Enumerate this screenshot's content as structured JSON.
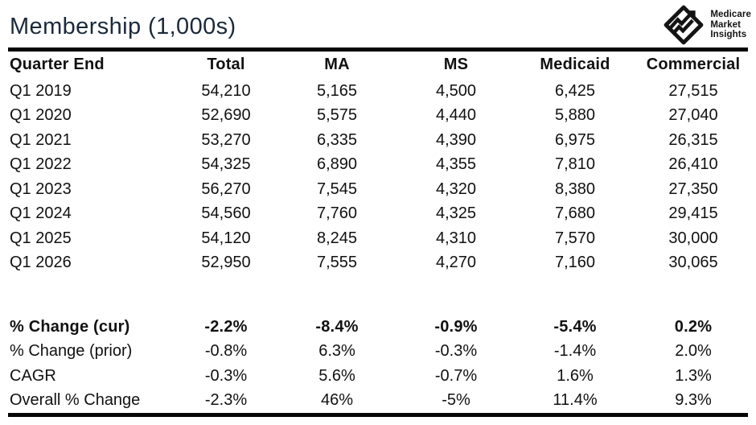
{
  "title": "Membership (1,000s)",
  "logo": {
    "line1": "Medicare",
    "line2": "Market",
    "line3": "Insights"
  },
  "colors": {
    "title_text": "#1b2a3a",
    "body_text": "#111111",
    "rule_lines": "#060606",
    "background": "#ffffff",
    "logo": "#141414"
  },
  "chart_data": {
    "type": "table",
    "title": "Membership (1,000s)",
    "columns": [
      "Quarter End",
      "Total",
      "MA",
      "MS",
      "Medicaid",
      "Commercial"
    ],
    "rows": [
      [
        "Q1 2019",
        "54,210",
        "5,165",
        "4,500",
        "6,425",
        "27,515"
      ],
      [
        "Q1 2020",
        "52,690",
        "5,575",
        "4,440",
        "5,880",
        "27,040"
      ],
      [
        "Q1 2021",
        "53,270",
        "6,335",
        "4,390",
        "6,975",
        "26,315"
      ],
      [
        "Q1 2022",
        "54,325",
        "6,890",
        "4,355",
        "7,810",
        "26,410"
      ],
      [
        "Q1 2023",
        "56,270",
        "7,545",
        "4,320",
        "8,380",
        "27,350"
      ],
      [
        "Q1 2024",
        "54,560",
        "7,760",
        "4,325",
        "7,680",
        "29,415"
      ],
      [
        "Q1 2025",
        "54,120",
        "8,245",
        "4,310",
        "7,570",
        "30,000"
      ],
      [
        "Q1 2026",
        "52,950",
        "7,555",
        "4,270",
        "7,160",
        "30,065"
      ]
    ],
    "summary_rows": [
      {
        "label": "% Change (cur)",
        "bold": true,
        "values": [
          "-2.2%",
          "-8.4%",
          "-0.9%",
          "-5.4%",
          "0.2%"
        ]
      },
      {
        "label": "% Change (prior)",
        "bold": false,
        "values": [
          "-0.8%",
          "6.3%",
          "-0.3%",
          "-1.4%",
          "2.0%"
        ]
      },
      {
        "label": "CAGR",
        "bold": false,
        "values": [
          "-0.3%",
          "5.6%",
          "-0.7%",
          "1.6%",
          "1.3%"
        ]
      },
      {
        "label": "Overall % Change",
        "bold": false,
        "values": [
          "-2.3%",
          "46%",
          "-5%",
          "11.4%",
          "9.3%"
        ]
      }
    ]
  }
}
